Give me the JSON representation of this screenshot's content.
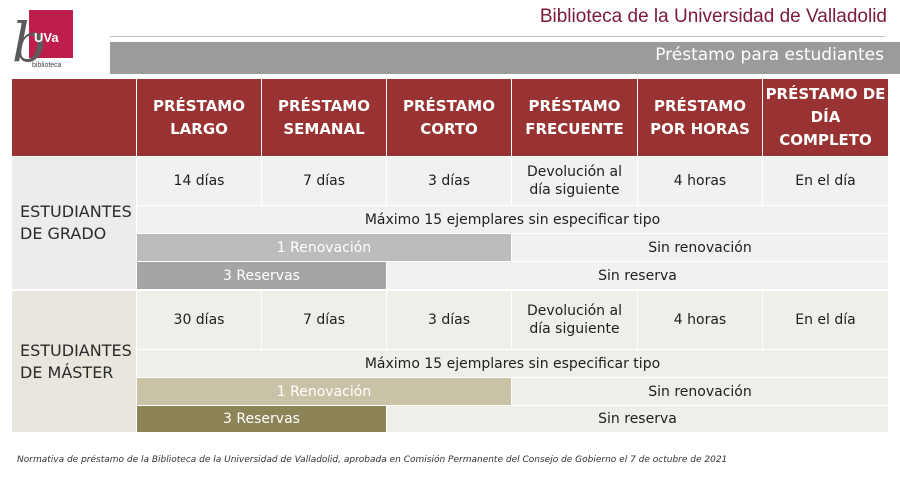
{
  "header": {
    "logo_text": "UVa",
    "logo_sub": "biblioteca",
    "title_part1": "Biblioteca de la Universidad ",
    "title_part2": "de",
    "title_part3": " Valladolid",
    "subtitle": "Préstamo para estudiantes"
  },
  "columns": [
    "PRÉSTAMO LARGO",
    "PRÉSTAMO SEMANAL",
    "PRÉSTAMO CORTO",
    "PRÉSTAMO FRECUENTE",
    "PRÉSTAMO POR HORAS",
    "PRÉSTAMO DE DÍA COMPLETO"
  ],
  "grado": {
    "label": "ESTUDIANTES DE GRADO",
    "durations": [
      "14 días",
      "7 días",
      "3 días",
      "Devolución al día siguiente",
      "4 horas",
      "En el día"
    ],
    "max": "Máximo 15 ejemplares sin especificar tipo",
    "renewal": "1 Renovación",
    "no_renewal": "Sin renovación",
    "reservations": "3 Reservas",
    "no_reservation": "Sin reserva"
  },
  "master": {
    "label": "ESTUDIANTES DE MÁSTER",
    "durations": [
      "30 días",
      "7 días",
      "3 días",
      "Devolución al día siguiente",
      "4 horas",
      "En el día"
    ],
    "max": "Máximo 15 ejemplares sin especificar tipo",
    "renewal": "1 Renovación",
    "no_renewal": "Sin renovación",
    "reservations": "3 Reservas",
    "no_reservation": "Sin reserva"
  },
  "footnote": "Normativa de préstamo de la Biblioteca de la Universidad de Valladolid, aprobada en Comisión Permanente del Consejo de Gobierno el 7 de octubre de 2021",
  "colors": {
    "header_red": "#993233",
    "title_red": "#7a1a37",
    "logo_red": "#be1e4b",
    "band_gray": "#9b9b9b"
  }
}
